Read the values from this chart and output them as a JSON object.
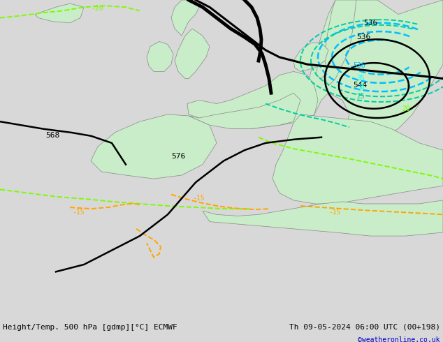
{
  "title_left": "Height/Temp. 500 hPa [gdmp][°C] ECMWF",
  "title_right": "Th 09-05-2024 06:00 UTC (00+198)",
  "watermark": "©weatheronline.co.uk",
  "bg_color": "#d8d8d8",
  "land_color": "#c8edc8",
  "coast_color": "#888888",
  "z500_color": "#000000",
  "temp_color_green": "#7cfc00",
  "temp_color_orange": "#ffa500",
  "z850_color_cyan": "#00bfff",
  "z850_color_teal": "#00cca3",
  "bottom_bar_color": "#f0f0f0",
  "bottom_text_color": "#000000",
  "watermark_color": "#0000cc"
}
